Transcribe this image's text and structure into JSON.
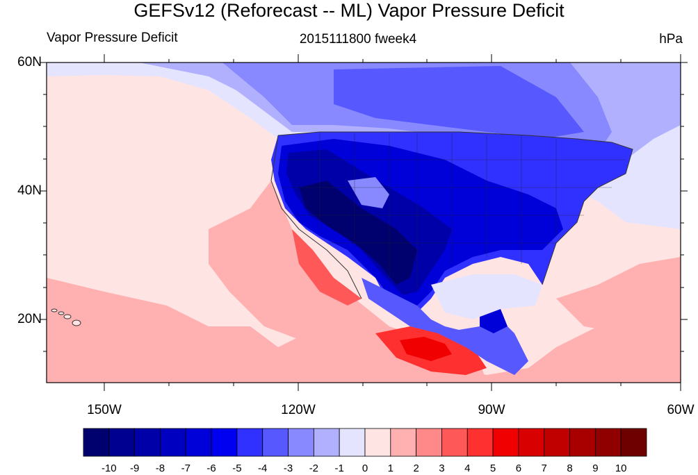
{
  "title": "GEFSv12 (Reforecast -- ML) Vapor Pressure Deficit",
  "subtitle_left": "Vapor Pressure Deficit",
  "subtitle_center": "2015111800 fweek4",
  "subtitle_right": "hPa",
  "lat_labels": [
    "60N",
    "40N",
    "20N"
  ],
  "lon_labels": [
    "150W",
    "120W",
    "90W",
    "60W"
  ],
  "colorbar": {
    "labels": [
      "-10",
      "-9",
      "-8",
      "-7",
      "-6",
      "-5",
      "-4",
      "-3",
      "-2",
      "-1",
      "0",
      "1",
      "2",
      "3",
      "4",
      "5",
      "6",
      "7",
      "8",
      "9",
      "10"
    ],
    "colors": [
      "#00006e",
      "#000090",
      "#0000a8",
      "#0000c0",
      "#0000d8",
      "#0000f0",
      "#3030ff",
      "#5858ff",
      "#8888ff",
      "#b0b0ff",
      "#e4e4ff",
      "#ffe4e4",
      "#ffb0b0",
      "#ff8888",
      "#ff5858",
      "#ff3030",
      "#f00000",
      "#d80000",
      "#c00000",
      "#a80000",
      "#900000",
      "#6e0000"
    ]
  },
  "colors": {
    "ocean_light": "#ffe4e4",
    "land_cool": "#b0b0ff"
  }
}
